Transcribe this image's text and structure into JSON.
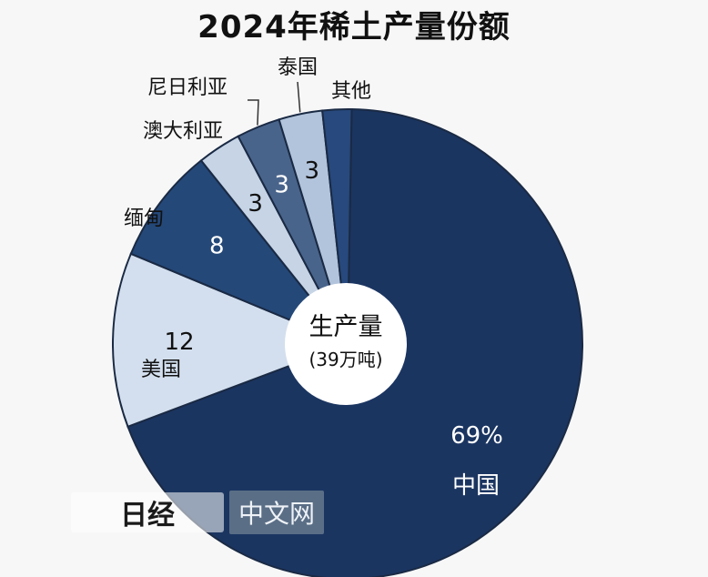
{
  "chart_data": {
    "type": "pie",
    "title": "2024年稀土产量份额",
    "center_label": "生产量",
    "center_sublabel": "(39万吨)",
    "slices": [
      {
        "name": "中国",
        "value": 69,
        "label": "69%",
        "color": "#1b3561"
      },
      {
        "name": "美国",
        "value": 12,
        "label": "12",
        "color": "#d3dfee"
      },
      {
        "name": "缅甸",
        "value": 8,
        "label": "8",
        "color": "#244878"
      },
      {
        "name": "澳大利亚",
        "value": 3,
        "label": "3",
        "color": "#c6d4e6"
      },
      {
        "name": "尼日利亚",
        "value": 3,
        "label": "3",
        "color": "#49648b"
      },
      {
        "name": "泰国",
        "value": 3,
        "label": "3",
        "color": "#b2c4dc"
      },
      {
        "name": "其他",
        "value": 2,
        "label": "",
        "color": "#27497d"
      }
    ]
  },
  "watermark": {
    "logo": "日经",
    "text": "中文网"
  }
}
